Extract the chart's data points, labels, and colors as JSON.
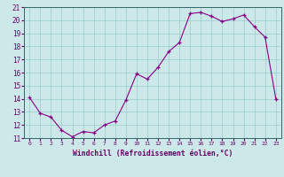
{
  "x": [
    0,
    1,
    2,
    3,
    4,
    5,
    6,
    7,
    8,
    9,
    10,
    11,
    12,
    13,
    14,
    15,
    16,
    17,
    18,
    19,
    20,
    21,
    22,
    23
  ],
  "y": [
    14.1,
    12.9,
    12.6,
    11.6,
    11.1,
    11.5,
    11.4,
    12.0,
    12.3,
    13.9,
    15.9,
    15.5,
    16.4,
    17.6,
    18.3,
    20.5,
    20.6,
    20.3,
    19.9,
    20.1,
    20.4,
    19.5,
    18.7,
    14.0
  ],
  "xlabel": "Windchill (Refroidissement éolien,°C)",
  "bg_color": "#cce8e8",
  "line_color": "#880088",
  "grid_color": "#99cccc",
  "text_color": "#660066",
  "spine_color": "#336666",
  "ylim": [
    11,
    21
  ],
  "xlim": [
    -0.5,
    23.5
  ],
  "yticks": [
    11,
    12,
    13,
    14,
    15,
    16,
    17,
    18,
    19,
    20,
    21
  ],
  "xticks": [
    0,
    1,
    2,
    3,
    4,
    5,
    6,
    7,
    8,
    9,
    10,
    11,
    12,
    13,
    14,
    15,
    16,
    17,
    18,
    19,
    20,
    21,
    22,
    23
  ],
  "xtick_labels": [
    "0",
    "1",
    "2",
    "3",
    "4",
    "5",
    "6",
    "7",
    "8",
    "9",
    "10",
    "11",
    "12",
    "13",
    "14",
    "15",
    "16",
    "17",
    "18",
    "19",
    "20",
    "21",
    "22",
    "23"
  ]
}
